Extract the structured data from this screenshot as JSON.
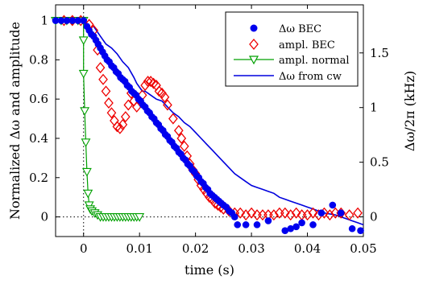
{
  "chart_data": {
    "type": "scatter",
    "xlabel": "time (s)",
    "ylabel_left": "Normalized Δω and amplitude",
    "ylabel_right": "Δω/2π (kHz)",
    "xlim": [
      -0.005,
      0.05
    ],
    "ylim_left": [
      -0.1,
      1.08
    ],
    "ylim_right": [
      -0.18,
      1.94
    ],
    "x_ticks": [
      0,
      0.01,
      0.02,
      0.03,
      0.04,
      0.05
    ],
    "x_tick_labels": [
      "0",
      "0.01",
      "0.02",
      "0.03",
      "0.04",
      "0.05"
    ],
    "y_left_ticks": [
      0,
      0.2,
      0.4,
      0.6,
      0.8,
      1
    ],
    "y_left_tick_labels": [
      "0",
      "0.2",
      "0.4",
      "0.6",
      "0.8",
      "1"
    ],
    "y_right_ticks": [
      0,
      0.5,
      1,
      1.5
    ],
    "y_right_tick_labels": [
      "0",
      "0.5",
      "1",
      "1.5"
    ],
    "reference_lines": {
      "x": 0,
      "y": 0,
      "style": "dotted"
    },
    "grid": false,
    "legend_position": "top-right",
    "series": [
      {
        "name": "Δω BEC",
        "marker": "filled-circle",
        "color": "#0000ee",
        "points": [
          [
            -0.005,
            1.0
          ],
          [
            -0.004,
            1.0
          ],
          [
            -0.003,
            1.0
          ],
          [
            -0.002,
            1.0
          ],
          [
            -0.001,
            1.0
          ],
          [
            0.0,
            1.0
          ],
          [
            0.0006,
            0.97
          ],
          [
            0.001,
            0.95
          ],
          [
            0.0014,
            0.93
          ],
          [
            0.0018,
            0.92
          ],
          [
            0.0022,
            0.9
          ],
          [
            0.0026,
            0.88
          ],
          [
            0.003,
            0.86
          ],
          [
            0.0034,
            0.84
          ],
          [
            0.0038,
            0.82
          ],
          [
            0.0042,
            0.8
          ],
          [
            0.0046,
            0.79
          ],
          [
            0.005,
            0.77
          ],
          [
            0.0054,
            0.76
          ],
          [
            0.0058,
            0.74
          ],
          [
            0.0062,
            0.73
          ],
          [
            0.0066,
            0.71
          ],
          [
            0.007,
            0.7
          ],
          [
            0.0074,
            0.69
          ],
          [
            0.0078,
            0.67
          ],
          [
            0.0082,
            0.66
          ],
          [
            0.0086,
            0.64
          ],
          [
            0.009,
            0.63
          ],
          [
            0.0094,
            0.62
          ],
          [
            0.0098,
            0.6
          ],
          [
            0.0102,
            0.59
          ],
          [
            0.0106,
            0.57
          ],
          [
            0.011,
            0.56
          ],
          [
            0.0114,
            0.54
          ],
          [
            0.0118,
            0.53
          ],
          [
            0.0122,
            0.51
          ],
          [
            0.0126,
            0.5
          ],
          [
            0.013,
            0.48
          ],
          [
            0.0134,
            0.47
          ],
          [
            0.0138,
            0.45
          ],
          [
            0.0142,
            0.44
          ],
          [
            0.0146,
            0.42
          ],
          [
            0.015,
            0.41
          ],
          [
            0.0154,
            0.39
          ],
          [
            0.0158,
            0.38
          ],
          [
            0.0162,
            0.36
          ],
          [
            0.0166,
            0.35
          ],
          [
            0.017,
            0.33
          ],
          [
            0.0174,
            0.32
          ],
          [
            0.0178,
            0.3
          ],
          [
            0.0182,
            0.29
          ],
          [
            0.0186,
            0.27
          ],
          [
            0.019,
            0.26
          ],
          [
            0.0194,
            0.24
          ],
          [
            0.0198,
            0.23
          ],
          [
            0.0202,
            0.21
          ],
          [
            0.0206,
            0.2
          ],
          [
            0.021,
            0.18
          ],
          [
            0.0214,
            0.17
          ],
          [
            0.0218,
            0.15
          ],
          [
            0.0222,
            0.14
          ],
          [
            0.0226,
            0.12
          ],
          [
            0.023,
            0.11
          ],
          [
            0.0234,
            0.1
          ],
          [
            0.0238,
            0.09
          ],
          [
            0.0242,
            0.08
          ],
          [
            0.0246,
            0.07
          ],
          [
            0.025,
            0.06
          ],
          [
            0.0255,
            0.05
          ],
          [
            0.026,
            0.03
          ],
          [
            0.0265,
            0.02
          ],
          [
            0.027,
            0.0
          ],
          [
            0.0275,
            -0.04
          ],
          [
            0.029,
            -0.04
          ],
          [
            0.031,
            -0.04
          ],
          [
            0.033,
            -0.02
          ],
          [
            0.036,
            -0.07
          ],
          [
            0.037,
            -0.06
          ],
          [
            0.038,
            -0.05
          ],
          [
            0.039,
            -0.03
          ],
          [
            0.041,
            -0.04
          ],
          [
            0.0425,
            0.02
          ],
          [
            0.0445,
            0.06
          ],
          [
            0.046,
            0.02
          ],
          [
            0.048,
            -0.06
          ],
          [
            0.0495,
            -0.07
          ]
        ]
      },
      {
        "name": "ampl. BEC",
        "marker": "open-diamond",
        "color": "#ee0000",
        "points": [
          [
            -0.0035,
            1.0
          ],
          [
            -0.002,
            1.0
          ],
          [
            -0.0005,
            1.0
          ],
          [
            0.001,
            0.98
          ],
          [
            0.0018,
            0.95
          ],
          [
            0.0025,
            0.85
          ],
          [
            0.003,
            0.76
          ],
          [
            0.0035,
            0.7
          ],
          [
            0.004,
            0.64
          ],
          [
            0.0045,
            0.58
          ],
          [
            0.005,
            0.53
          ],
          [
            0.0055,
            0.49
          ],
          [
            0.006,
            0.46
          ],
          [
            0.0065,
            0.45
          ],
          [
            0.007,
            0.47
          ],
          [
            0.0075,
            0.51
          ],
          [
            0.008,
            0.57
          ],
          [
            0.0085,
            0.63
          ],
          [
            0.009,
            0.59
          ],
          [
            0.0095,
            0.56
          ],
          [
            0.0105,
            0.62
          ],
          [
            0.011,
            0.67
          ],
          [
            0.0115,
            0.69
          ],
          [
            0.012,
            0.69
          ],
          [
            0.0125,
            0.68
          ],
          [
            0.013,
            0.67
          ],
          [
            0.0135,
            0.64
          ],
          [
            0.014,
            0.63
          ],
          [
            0.0145,
            0.61
          ],
          [
            0.015,
            0.57
          ],
          [
            0.016,
            0.5
          ],
          [
            0.017,
            0.44
          ],
          [
            0.0175,
            0.4
          ],
          [
            0.018,
            0.36
          ],
          [
            0.0185,
            0.31
          ],
          [
            0.019,
            0.27
          ],
          [
            0.0195,
            0.24
          ],
          [
            0.02,
            0.22
          ],
          [
            0.0205,
            0.19
          ],
          [
            0.021,
            0.16
          ],
          [
            0.0215,
            0.14
          ],
          [
            0.022,
            0.12
          ],
          [
            0.0225,
            0.1
          ],
          [
            0.023,
            0.09
          ],
          [
            0.0235,
            0.07
          ],
          [
            0.024,
            0.06
          ],
          [
            0.0245,
            0.05
          ],
          [
            0.025,
            0.04
          ],
          [
            0.026,
            0.03
          ],
          [
            0.027,
            0.02
          ],
          [
            0.028,
            0.02
          ],
          [
            0.029,
            0.01
          ],
          [
            0.03,
            0.02
          ],
          [
            0.031,
            0.01
          ],
          [
            0.032,
            0.01
          ],
          [
            0.033,
            0.01
          ],
          [
            0.034,
            0.01
          ],
          [
            0.035,
            0.02
          ],
          [
            0.036,
            0.02
          ],
          [
            0.037,
            0.01
          ],
          [
            0.038,
            0.02
          ],
          [
            0.039,
            0.01
          ],
          [
            0.04,
            0.01
          ],
          [
            0.041,
            0.02
          ],
          [
            0.042,
            0.01
          ],
          [
            0.043,
            0.02
          ],
          [
            0.044,
            0.01
          ],
          [
            0.045,
            0.02
          ],
          [
            0.046,
            0.02
          ],
          [
            0.0475,
            0.01
          ],
          [
            0.049,
            0.02
          ]
        ]
      },
      {
        "name": "ampl. normal",
        "marker": "open-triangle-down-with-line",
        "color": "#00a000",
        "points": [
          [
            -0.005,
            1.0
          ],
          [
            -0.004,
            1.0
          ],
          [
            -0.003,
            1.0
          ],
          [
            -0.002,
            1.0
          ],
          [
            -0.001,
            1.0
          ],
          [
            0.0,
            1.0
          ],
          [
            0.0,
            0.9
          ],
          [
            0.0,
            0.73
          ],
          [
            0.0002,
            0.54
          ],
          [
            0.0004,
            0.38
          ],
          [
            0.0006,
            0.23
          ],
          [
            0.0008,
            0.12
          ],
          [
            0.001,
            0.06
          ],
          [
            0.0012,
            0.04
          ],
          [
            0.0015,
            0.03
          ],
          [
            0.002,
            0.02
          ],
          [
            0.0025,
            0.01
          ],
          [
            0.003,
            0.0
          ],
          [
            0.0035,
            0.0
          ],
          [
            0.004,
            0.0
          ],
          [
            0.0045,
            0.0
          ],
          [
            0.005,
            0.0
          ],
          [
            0.0055,
            0.0
          ],
          [
            0.006,
            0.0
          ],
          [
            0.0065,
            0.0
          ],
          [
            0.007,
            0.0
          ],
          [
            0.0075,
            0.0
          ],
          [
            0.008,
            0.0
          ],
          [
            0.0085,
            0.0
          ],
          [
            0.009,
            0.0
          ],
          [
            0.0095,
            0.0
          ],
          [
            0.01,
            0.0
          ]
        ]
      },
      {
        "name": "Δω from cw",
        "marker": "line",
        "color": "#0000dd",
        "points": [
          [
            0.0018,
            0.97
          ],
          [
            0.003,
            0.92
          ],
          [
            0.004,
            0.88
          ],
          [
            0.005,
            0.86
          ],
          [
            0.006,
            0.83
          ],
          [
            0.007,
            0.79
          ],
          [
            0.008,
            0.76
          ],
          [
            0.009,
            0.71
          ],
          [
            0.0095,
            0.68
          ],
          [
            0.01,
            0.66
          ],
          [
            0.0105,
            0.64
          ],
          [
            0.011,
            0.64
          ],
          [
            0.0115,
            0.63
          ],
          [
            0.012,
            0.62
          ],
          [
            0.013,
            0.6
          ],
          [
            0.014,
            0.59
          ],
          [
            0.015,
            0.56
          ],
          [
            0.016,
            0.53
          ],
          [
            0.017,
            0.51
          ],
          [
            0.018,
            0.48
          ],
          [
            0.019,
            0.46
          ],
          [
            0.02,
            0.43
          ],
          [
            0.021,
            0.4
          ],
          [
            0.022,
            0.37
          ],
          [
            0.023,
            0.34
          ],
          [
            0.024,
            0.31
          ],
          [
            0.025,
            0.28
          ],
          [
            0.026,
            0.25
          ],
          [
            0.027,
            0.22
          ],
          [
            0.028,
            0.2
          ],
          [
            0.029,
            0.18
          ],
          [
            0.03,
            0.16
          ],
          [
            0.031,
            0.15
          ],
          [
            0.032,
            0.14
          ],
          [
            0.033,
            0.13
          ],
          [
            0.034,
            0.12
          ],
          [
            0.035,
            0.1
          ],
          [
            0.036,
            0.09
          ],
          [
            0.037,
            0.08
          ],
          [
            0.038,
            0.07
          ],
          [
            0.039,
            0.06
          ],
          [
            0.04,
            0.05
          ],
          [
            0.041,
            0.04
          ],
          [
            0.042,
            0.03
          ],
          [
            0.043,
            0.02
          ],
          [
            0.044,
            0.015
          ],
          [
            0.045,
            0.01
          ],
          [
            0.046,
            0.0
          ],
          [
            0.047,
            -0.01
          ],
          [
            0.048,
            -0.02
          ],
          [
            0.049,
            -0.03
          ],
          [
            0.05,
            -0.04
          ]
        ]
      }
    ]
  }
}
